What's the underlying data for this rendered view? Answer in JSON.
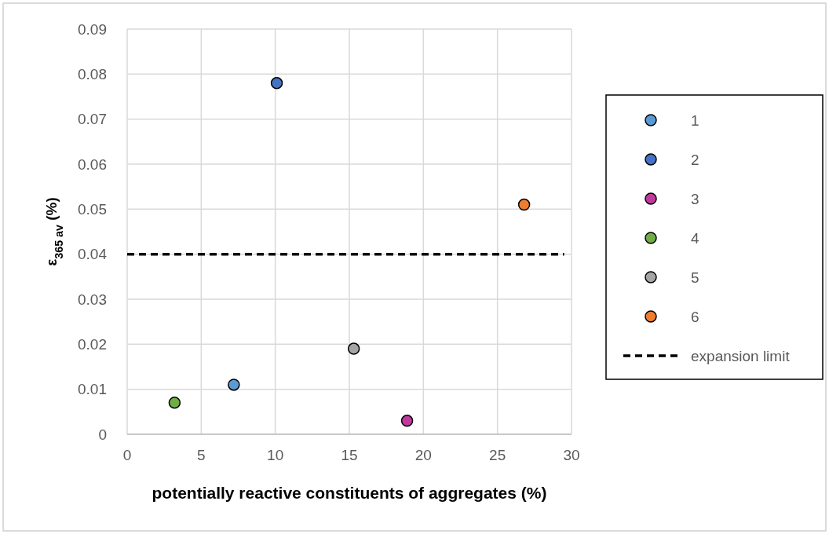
{
  "chart_data": {
    "type": "scatter",
    "xlabel": "potentially reactive constituents of aggregates (%)",
    "ylabel": "ε$_{365 av}$ (%)",
    "xlim": [
      0,
      30
    ],
    "xticks": [
      0,
      5,
      10,
      15,
      20,
      25,
      30
    ],
    "ylim": [
      0,
      0.09
    ],
    "yticks": [
      0,
      0.01,
      0.02,
      0.03,
      0.04,
      0.05,
      0.06,
      0.07,
      0.08,
      0.09
    ],
    "grid": true,
    "legend": "right",
    "marker": "circle",
    "series": [
      {
        "name": "1",
        "color": "#5b9bd5",
        "x": [
          7.2
        ],
        "values": [
          0.011
        ]
      },
      {
        "name": "2",
        "color": "#4472c4",
        "x": [
          10.1
        ],
        "values": [
          0.078
        ]
      },
      {
        "name": "3",
        "color": "#c0399e",
        "x": [
          18.9
        ],
        "values": [
          0.003
        ]
      },
      {
        "name": "4",
        "color": "#70ad47",
        "x": [
          3.2
        ],
        "values": [
          0.007
        ]
      },
      {
        "name": "5",
        "color": "#a5a5a5",
        "x": [
          15.3
        ],
        "values": [
          0.019
        ]
      },
      {
        "name": "6",
        "color": "#ed7d31",
        "x": [
          26.8
        ],
        "values": [
          0.051
        ]
      },
      {
        "name": "expansion limit",
        "type": "line",
        "color": "#000000",
        "line_style": "dashed",
        "marker": "none",
        "x": [
          0,
          29.5
        ],
        "values": [
          0.04,
          0.04
        ]
      }
    ]
  }
}
